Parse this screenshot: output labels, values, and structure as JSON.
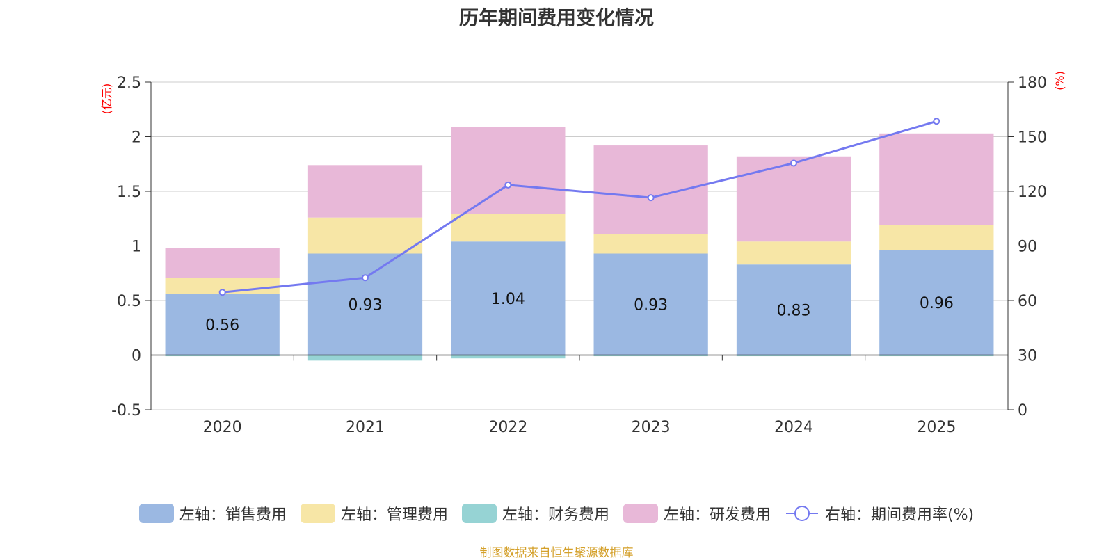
{
  "title": "历年期间费用变化情况",
  "footer": "制图数据来自恒生聚源数据库",
  "chart_data": {
    "type": "bar",
    "stacked": true,
    "title": "历年期间费用变化情况",
    "categories": [
      "2020",
      "2021",
      "2022",
      "2023",
      "2024",
      "2025"
    ],
    "y_left": {
      "unit": "(亿元)",
      "ylim": [
        -0.5,
        2.5
      ],
      "ticks": [
        "-0.5",
        "0",
        "0.5",
        "1",
        "1.5",
        "2",
        "2.5"
      ]
    },
    "y_right": {
      "unit": "(%)",
      "ylim": [
        0,
        180
      ],
      "ticks": [
        "0",
        "30",
        "60",
        "90",
        "120",
        "150",
        "180"
      ]
    },
    "series": [
      {
        "name": "左轴：销售费用",
        "axis": "left",
        "color": "#9bb8e2",
        "values": [
          0.56,
          0.93,
          1.04,
          0.93,
          0.83,
          0.96
        ],
        "labels": [
          "0.56",
          "0.93",
          "1.04",
          "0.93",
          "0.83",
          "0.96"
        ]
      },
      {
        "name": "左轴：管理费用",
        "axis": "left",
        "color": "#f7e6a6",
        "values": [
          0.15,
          0.33,
          0.25,
          0.18,
          0.21,
          0.23
        ]
      },
      {
        "name": "左轴：财务费用",
        "axis": "left",
        "color": "#96d3d4",
        "values": [
          -0.01,
          -0.05,
          -0.03,
          -0.01,
          -0.01,
          -0.01
        ]
      },
      {
        "name": "左轴：研发费用",
        "axis": "left",
        "color": "#e8b8d8",
        "values": [
          0.27,
          0.48,
          0.8,
          0.81,
          0.78,
          0.84
        ]
      },
      {
        "name": "右轴：期间费用率(%)",
        "axis": "right",
        "type": "line",
        "color": "#7479f0",
        "values": [
          64.5,
          72.5,
          123.5,
          116.5,
          135.5,
          158.5
        ]
      }
    ]
  },
  "legend": [
    {
      "label": "左轴：销售费用",
      "color": "#9bb8e2",
      "kind": "bar"
    },
    {
      "label": "左轴：管理费用",
      "color": "#f7e6a6",
      "kind": "bar"
    },
    {
      "label": "左轴：财务费用",
      "color": "#96d3d4",
      "kind": "bar"
    },
    {
      "label": "左轴：研发费用",
      "color": "#e8b8d8",
      "kind": "bar"
    },
    {
      "label": "右轴：期间费用率(%)",
      "color": "#7479f0",
      "kind": "line"
    }
  ]
}
